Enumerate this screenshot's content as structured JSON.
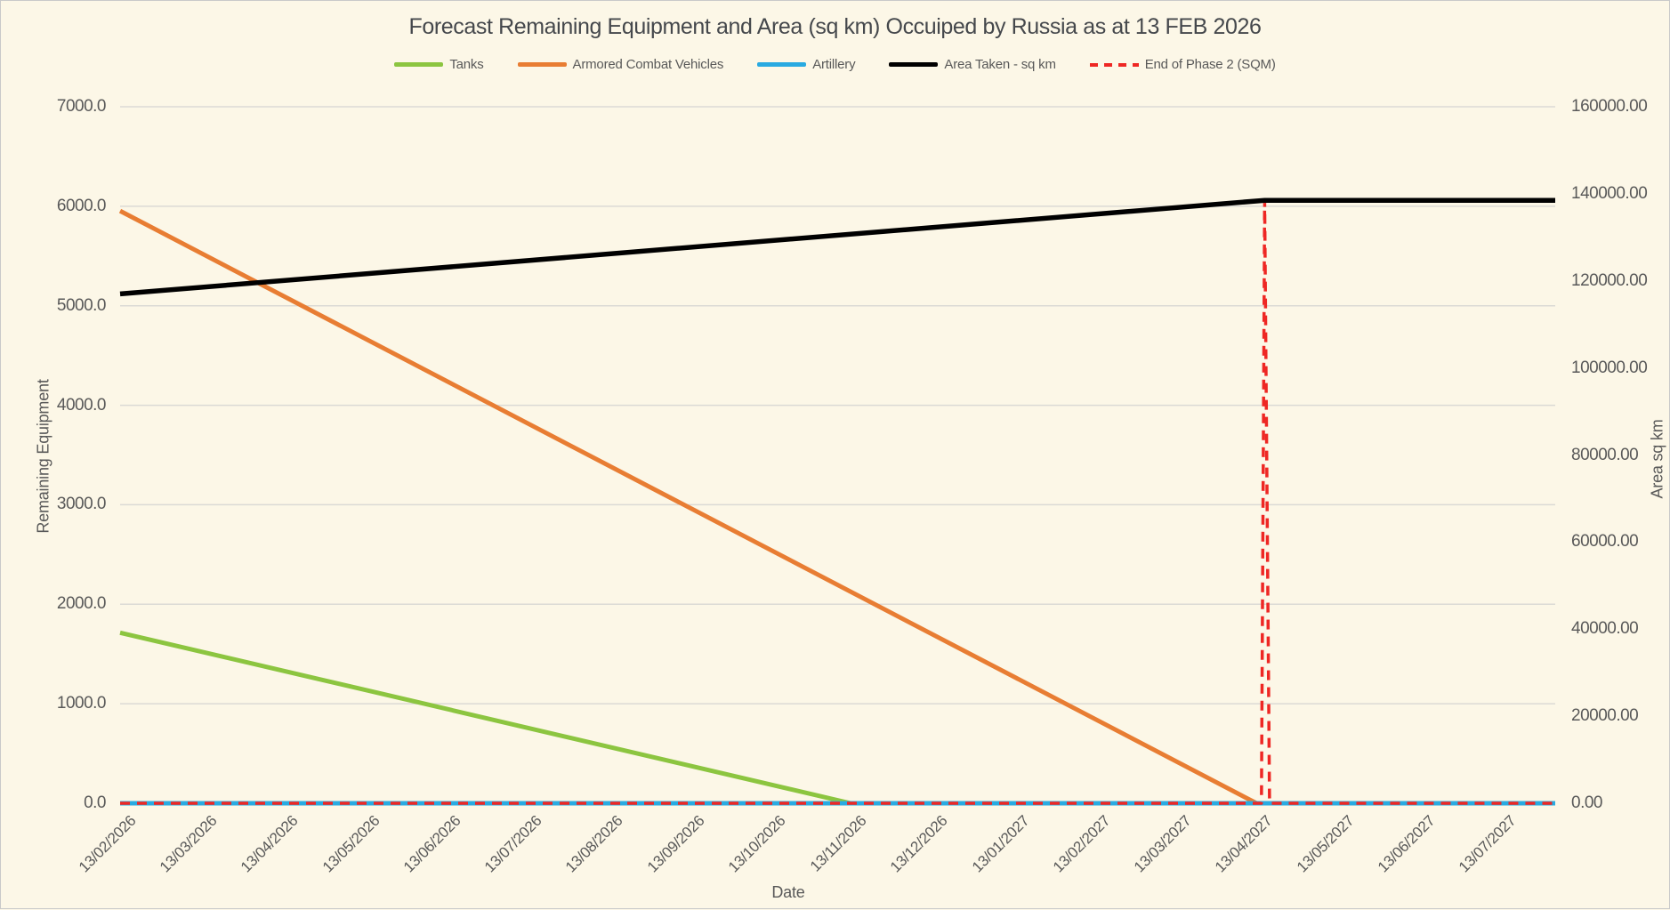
{
  "colors": {
    "bg": "#FCF7E7",
    "border": "#C9C9C9",
    "grid": "#DBDAD5",
    "text": "#595959",
    "title": "#45484C",
    "accent_red": "#EE2724"
  },
  "chart_data": {
    "type": "line",
    "title": "Forecast Remaining Equipment and Area (sq km) Occuiped by Russia as at 13 FEB 2026",
    "xlabel": "Date",
    "grid": "horizontal",
    "legend_position": "top",
    "x_tick_rotation_deg": 45,
    "x_categories": [
      "13/02/2026",
      "13/03/2026",
      "13/04/2026",
      "13/05/2026",
      "13/06/2026",
      "13/07/2026",
      "13/08/2026",
      "13/09/2026",
      "13/10/2026",
      "13/11/2026",
      "13/12/2026",
      "13/01/2027",
      "13/02/2027",
      "13/03/2027",
      "13/04/2027",
      "13/05/2027",
      "13/06/2027",
      "13/07/2027"
    ],
    "y_left": {
      "title": "Remaining Equipment",
      "min": 0,
      "max": 7000,
      "tick_step": 1000,
      "ticks": [
        {
          "value": 7000,
          "label": "7000.0"
        },
        {
          "value": 6000,
          "label": "6000.0"
        },
        {
          "value": 5000,
          "label": "5000.0"
        },
        {
          "value": 4000,
          "label": "4000.0"
        },
        {
          "value": 3000,
          "label": "3000.0"
        },
        {
          "value": 2000,
          "label": "2000.0"
        },
        {
          "value": 1000,
          "label": "1000.0"
        },
        {
          "value": 0,
          "label": "0.0"
        }
      ]
    },
    "y_right": {
      "title": "Area sq km",
      "min": 0,
      "max": 160000,
      "tick_step": 20000,
      "ticks": [
        {
          "value": 160000,
          "label": "160000.00"
        },
        {
          "value": 140000,
          "label": "140000.00"
        },
        {
          "value": 120000,
          "label": "120000.00"
        },
        {
          "value": 100000,
          "label": "100000.00"
        },
        {
          "value": 80000,
          "label": "80000.00"
        },
        {
          "value": 60000,
          "label": "60000.00"
        },
        {
          "value": 40000,
          "label": "40000.00"
        },
        {
          "value": 20000,
          "label": "20000.00"
        },
        {
          "value": 0,
          "label": "0.00"
        }
      ]
    },
    "series": [
      {
        "name": "Tanks",
        "axis": "left",
        "color": "#8CC540",
        "style": "solid",
        "z": 1,
        "points": [
          {
            "t": 0,
            "date": "13/02/2026",
            "value": 1714
          },
          {
            "t": 9,
            "date": "13/11/2026",
            "value": 0
          }
        ]
      },
      {
        "name": "Armored Combat Vehicles",
        "axis": "left",
        "color": "#E87D33",
        "style": "solid",
        "z": 2,
        "points": [
          {
            "t": 0,
            "date": "13/02/2026",
            "value": 5953
          },
          {
            "t": 14,
            "date": "13/04/2027",
            "value": 0
          }
        ]
      },
      {
        "name": "Artillery",
        "axis": "left",
        "color": "#29AAE1",
        "style": "solid",
        "z": 3,
        "points": [
          {
            "t": 0,
            "date": "13/02/2026",
            "value": 0
          },
          {
            "t": 17.68,
            "value": 0
          }
        ]
      },
      {
        "name": "Area Taken - sq km",
        "axis": "right",
        "color": "#000000",
        "style": "solid",
        "z": 5,
        "points": [
          {
            "t": 0,
            "date": "13/02/2026",
            "value": 117000
          },
          {
            "t": 14.1,
            "date": "13/04/2027",
            "value": 138500
          },
          {
            "t": 17.68,
            "value": 138500
          }
        ]
      },
      {
        "name": "End of Phase 2 (SQM)",
        "axis": "right",
        "color": "#EE2724",
        "style": "dashed",
        "z": 4,
        "points": [
          {
            "t": 0,
            "date": "13/02/2026",
            "value": 0
          },
          {
            "t": 14.06,
            "value": 0
          },
          {
            "t": 14.1,
            "date": "13/04/2027",
            "value": 138500
          },
          {
            "t": 14.16,
            "value": 0
          },
          {
            "t": 17.68,
            "value": 0
          }
        ]
      }
    ]
  }
}
